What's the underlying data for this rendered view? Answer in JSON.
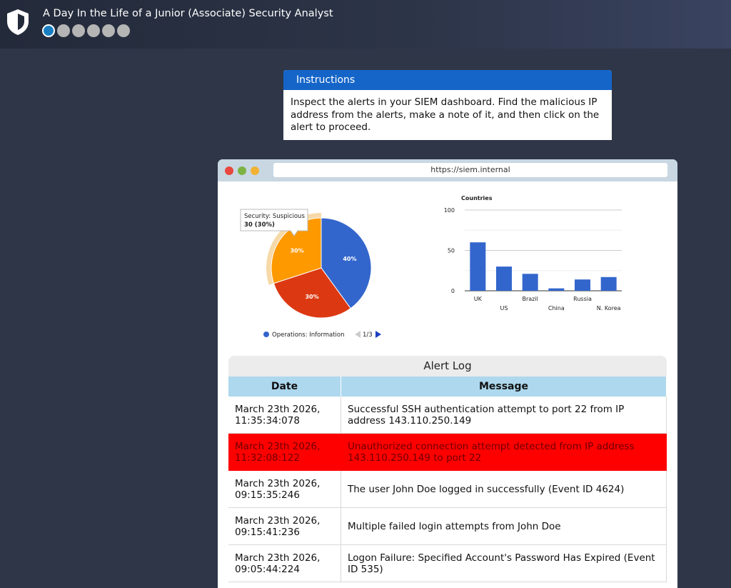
{
  "header": {
    "course_title": "A Day In the Life of a Junior (Associate) Security Analyst",
    "total_steps": 6,
    "active_step": 1
  },
  "instructions": {
    "title": "Instructions",
    "text": "Inspect the alerts in your SIEM dashboard. Find the malicious IP address from the alerts, make a note of it, and then click on the alert to proceed."
  },
  "browser": {
    "url": "https://siem.internal"
  },
  "chart_data": [
    {
      "type": "pie",
      "slices": [
        {
          "label": "Operations: Information",
          "value": 40,
          "pct_label": "40%",
          "color": "#3366cc"
        },
        {
          "label": "",
          "value": 30,
          "pct_label": "30%",
          "color": "#dc3912"
        },
        {
          "label": "Security: Suspicious",
          "value": 30,
          "pct_label": "30%",
          "color": "#ff9900"
        }
      ],
      "tooltip": {
        "title": "Security: Suspicious",
        "value": "30 (30%)"
      },
      "legend": {
        "label": "Operations: Information",
        "color": "#3366cc",
        "page": "1/3",
        "position": "bottom"
      }
    },
    {
      "type": "bar",
      "title": "Countries",
      "categories": [
        "UK",
        "US",
        "Brazil",
        "China",
        "Russia",
        "N. Korea"
      ],
      "values": [
        60,
        30,
        21,
        3,
        14,
        17
      ],
      "ylim": [
        0,
        100
      ],
      "yticks": [
        0,
        50,
        100
      ],
      "color": "#3366cc",
      "grid": true
    }
  ],
  "alert_log": {
    "title": "Alert Log",
    "columns": [
      "Date",
      "Message"
    ],
    "rows": [
      {
        "date": "March 23th 2026, 11:35:34:078",
        "message": "Successful SSH authentication attempt to port 22 from IP address 143.110.250.149",
        "highlight": false
      },
      {
        "date": "March 23th 2026, 11:32:08:122",
        "message": "Unauthorized connection attempt detected from IP address 143.110.250.149 to port 22",
        "highlight": true
      },
      {
        "date": "March 23th 2026, 09:15:35:246",
        "message": "The user John Doe logged in successfully (Event ID 4624)",
        "highlight": false
      },
      {
        "date": "March 23th 2026, 09:15:41:236",
        "message": "Multiple failed login attempts from John Doe",
        "highlight": false
      },
      {
        "date": "March 23th 2026, 09:05:44:224",
        "message": "Logon Failure: Specified Account's Password Has Expired (Event ID 535)",
        "highlight": false
      }
    ]
  }
}
